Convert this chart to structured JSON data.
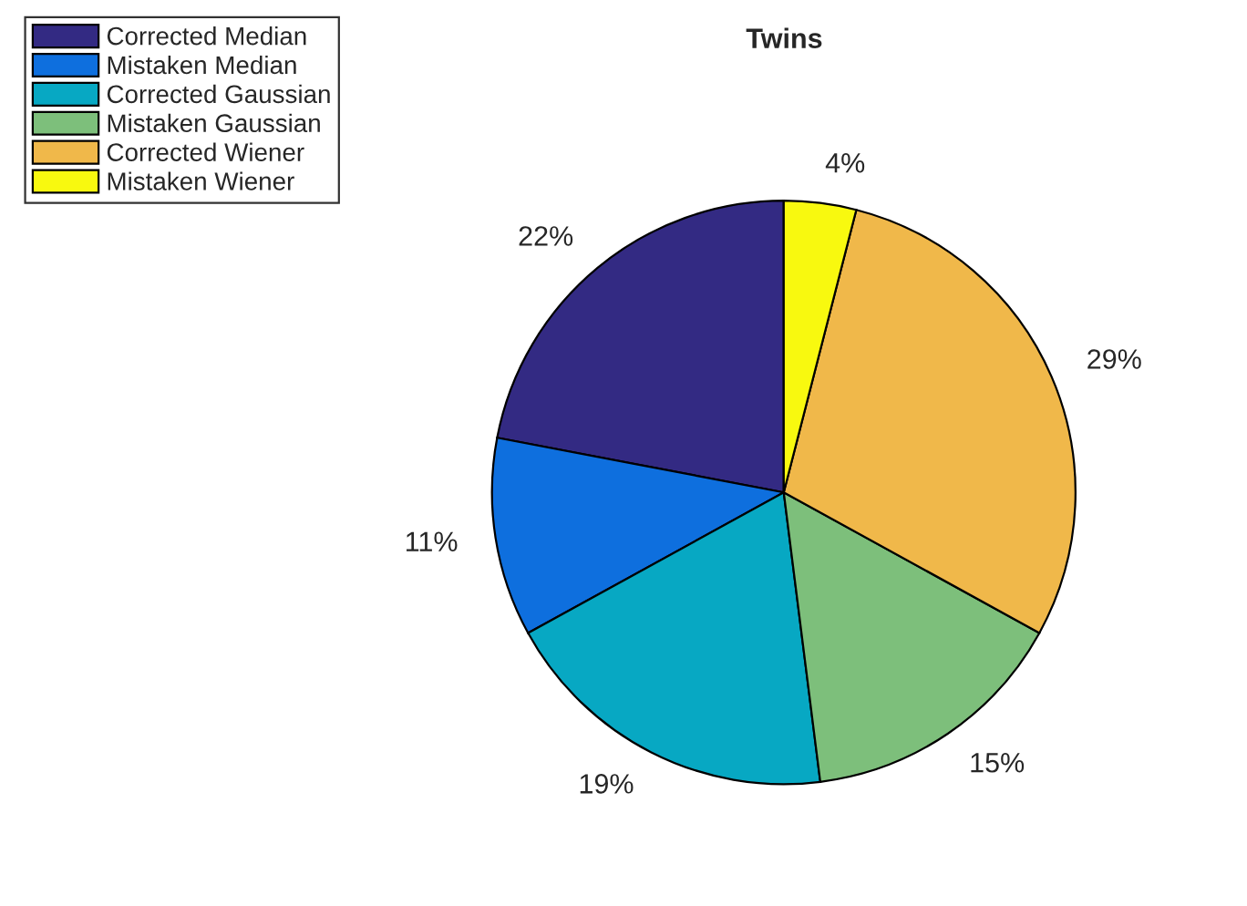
{
  "chart_data": {
    "type": "pie",
    "title": "Twins",
    "categories": [
      "Corrected Median",
      "Mistaken Median",
      "Corrected Gaussian",
      "Mistaken Gaussian",
      "Corrected Wiener",
      "Mistaken Wiener"
    ],
    "values": [
      22,
      11,
      19,
      15,
      29,
      4
    ],
    "value_labels": [
      "22%",
      "11%",
      "19%",
      "15%",
      "29%",
      "4%"
    ],
    "colors": [
      "#332a83",
      "#0e6fde",
      "#07a8c3",
      "#7dbf7b",
      "#f0b84a",
      "#f8f90f"
    ],
    "legend": "top left"
  }
}
